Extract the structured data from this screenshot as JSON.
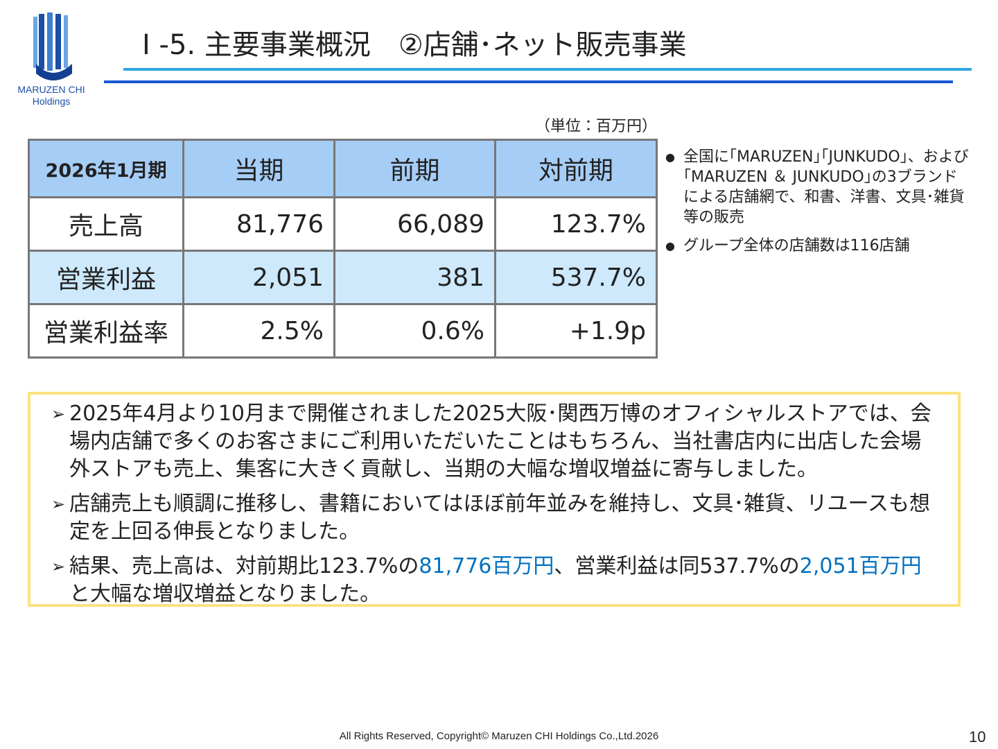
{
  "logo": {
    "name": "MARUZEN CHI",
    "sub": "Holdings"
  },
  "header": {
    "title": "Ⅰ -5. 主要事業概況　②店舗･ネット販売事業"
  },
  "table": {
    "unit": "（単位：百万円）",
    "header": [
      "2026年1月期",
      "当期",
      "前期",
      "対前期"
    ],
    "rows": [
      [
        "売上高",
        "81,776",
        "66,089",
        "123.7%"
      ],
      [
        "営業利益",
        "2,051",
        "381",
        "537.7%"
      ],
      [
        "営業利益率",
        "2.5%",
        "0.6%",
        "+1.9p"
      ]
    ]
  },
  "notes": [
    "全国に｢MARUZEN｣｢JUNKUDO｣、および｢MARUZEN ＆ JUNKUDO｣の3ブランドによる店舗網で、和書、洋書、文具･雑貨等の販売",
    "グループ全体の店舗数は116店舗"
  ],
  "summary": [
    [
      {
        "text": "2025年4月より10月まで開催されました2025大阪･関西万博のオフィシャルストアでは、会場内店舗で多くのお客さまにご利用いただいたことはもちろん、当社書店内に出店した会場外ストアも売上、集客に大きく貢献し、当期の大幅な増収増益に寄与しました。"
      }
    ],
    [
      {
        "text": "店舗売上も順調に推移し、書籍においてはほぼ前年並みを維持し、文具･雑貨、リユースも想定を上回る伸長となりました。"
      }
    ],
    [
      {
        "text": "結果、売上高は、対前期比123.7%の"
      },
      {
        "text": "81,776百万円",
        "color": "#0070c0"
      },
      {
        "text": "、営業利益は同537.7%の"
      },
      {
        "text": "2,051百万円",
        "color": "#0070c0"
      },
      {
        "text": "と大幅な増収増益となりました。"
      }
    ]
  ],
  "footer": {
    "copyright": "All Rights Reserved, Copyright© Maruzen CHI Holdings Co.,Ltd.2026",
    "page": "10"
  }
}
